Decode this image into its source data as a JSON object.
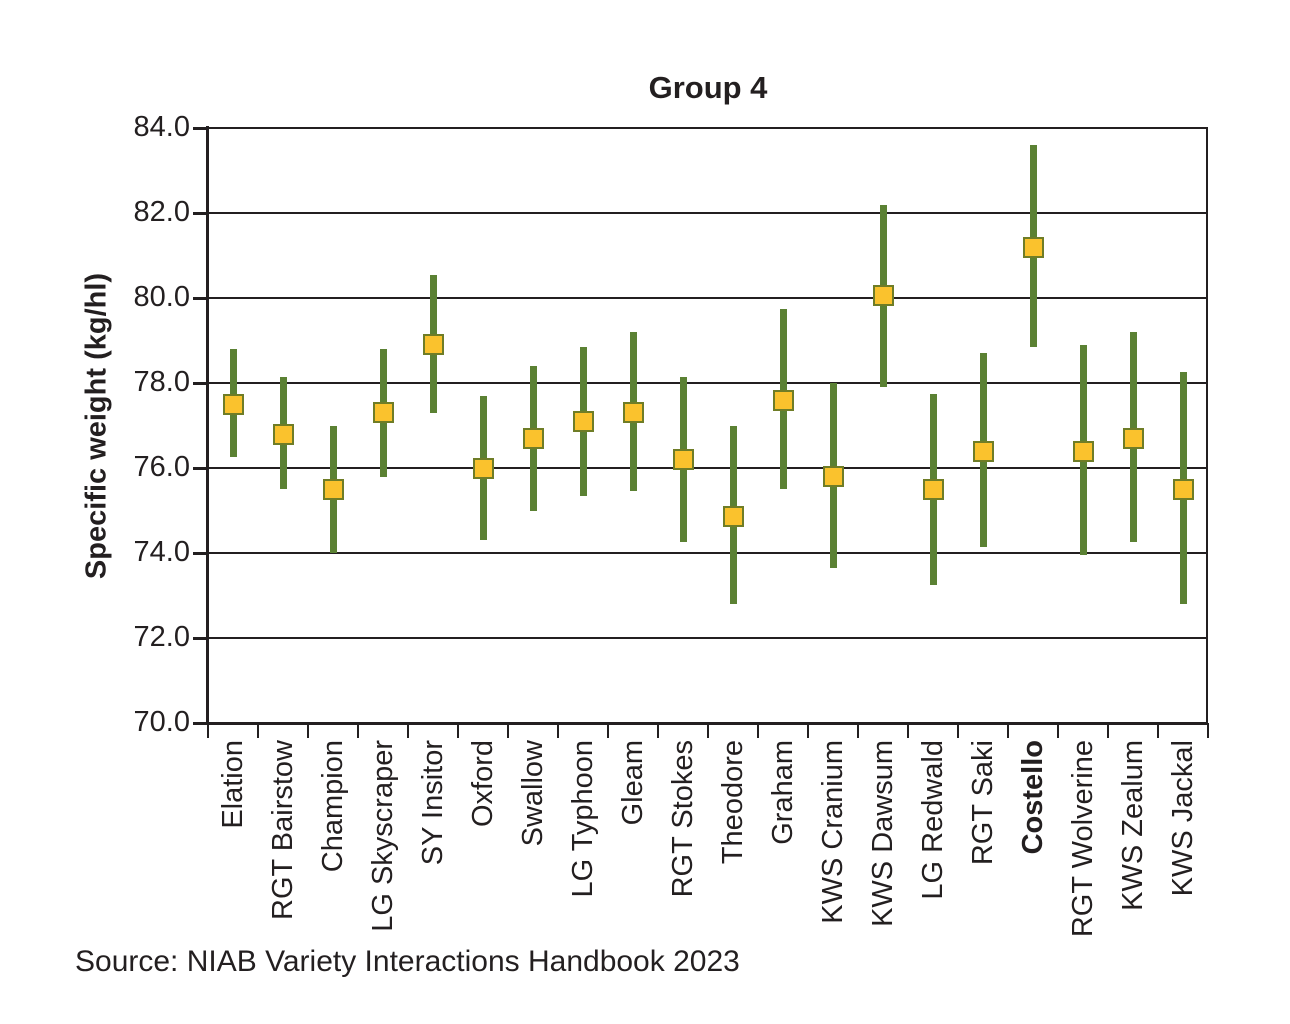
{
  "header": {
    "title": "Group 4"
  },
  "axes": {
    "y_title": "Specific weight (kg/hl)"
  },
  "footer": {
    "source": "Source: NIAB Variety Interactions Handbook 2023"
  },
  "colors": {
    "range_line": "#5b8133",
    "marker_fill": "#fac22d",
    "marker_border": "#6f7d27",
    "axis": "#231f20",
    "text": "#231f20"
  },
  "chart_data": {
    "type": "scatter",
    "subtype": "range-with-mean-marker",
    "title": "Group 4",
    "xlabel": "",
    "ylabel": "Specific weight (kg/hl)",
    "ylim": [
      70,
      84
    ],
    "yticks": [
      84,
      82,
      80,
      78,
      76,
      74,
      72,
      70
    ],
    "ytick_format_decimals": 1,
    "grid": "horizontal",
    "legend": "none",
    "categories": [
      "Elation",
      "RGT Bairstow",
      "Champion",
      "LG Skyscraper",
      "SY Insitor",
      "Oxford",
      "Swallow",
      "LG Typhoon",
      "Gleam",
      "RGT Stokes",
      "Theodore",
      "Graham",
      "KWS Cranium",
      "KWS Dawsum",
      "LG Redwald",
      "RGT Saki",
      "Costello",
      "RGT Wolverine",
      "KWS Zealum",
      "KWS Jackal"
    ],
    "points": [
      {
        "variety": "Elation",
        "low": 76.25,
        "mean": 77.5,
        "high": 78.8,
        "bold": false
      },
      {
        "variety": "RGT Bairstow",
        "low": 75.5,
        "mean": 76.8,
        "high": 78.15,
        "bold": false
      },
      {
        "variety": "Champion",
        "low": 74.0,
        "mean": 75.5,
        "high": 77.0,
        "bold": false
      },
      {
        "variety": "LG Skyscraper",
        "low": 75.8,
        "mean": 77.3,
        "high": 78.8,
        "bold": false
      },
      {
        "variety": "SY Insitor",
        "low": 77.3,
        "mean": 78.9,
        "high": 80.55,
        "bold": false
      },
      {
        "variety": "Oxford",
        "low": 74.3,
        "mean": 76.0,
        "high": 77.7,
        "bold": false
      },
      {
        "variety": "Swallow",
        "low": 75.0,
        "mean": 76.7,
        "high": 78.4,
        "bold": false
      },
      {
        "variety": "LG Typhoon",
        "low": 75.35,
        "mean": 77.1,
        "high": 78.85,
        "bold": false
      },
      {
        "variety": "Gleam",
        "low": 75.45,
        "mean": 77.3,
        "high": 79.2,
        "bold": false
      },
      {
        "variety": "RGT Stokes",
        "low": 74.25,
        "mean": 76.2,
        "high": 78.15,
        "bold": false
      },
      {
        "variety": "Theodore",
        "low": 72.8,
        "mean": 74.85,
        "high": 77.0,
        "bold": false
      },
      {
        "variety": "Graham",
        "low": 75.5,
        "mean": 77.6,
        "high": 79.75,
        "bold": false
      },
      {
        "variety": "KWS Cranium",
        "low": 73.65,
        "mean": 75.8,
        "high": 78.0,
        "bold": false
      },
      {
        "variety": "KWS Dawsum",
        "low": 77.9,
        "mean": 80.05,
        "high": 82.2,
        "bold": false
      },
      {
        "variety": "LG Redwald",
        "low": 73.25,
        "mean": 75.5,
        "high": 77.75,
        "bold": false
      },
      {
        "variety": "RGT Saki",
        "low": 74.15,
        "mean": 76.4,
        "high": 78.7,
        "bold": false
      },
      {
        "variety": "Costello",
        "low": 78.85,
        "mean": 81.2,
        "high": 83.6,
        "bold": true
      },
      {
        "variety": "RGT Wolverine",
        "low": 73.95,
        "mean": 76.4,
        "high": 78.9,
        "bold": false
      },
      {
        "variety": "KWS Zealum",
        "low": 74.25,
        "mean": 76.7,
        "high": 79.2,
        "bold": false
      },
      {
        "variety": "KWS Jackal",
        "low": 72.8,
        "mean": 75.5,
        "high": 78.25,
        "bold": false
      }
    ]
  }
}
